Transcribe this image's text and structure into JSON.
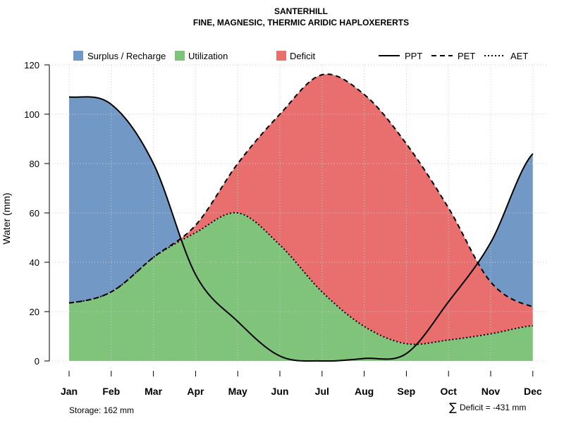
{
  "chart_data": {
    "type": "area",
    "title": "SANTERHILL",
    "subtitle": "FINE, MAGNESIC, THERMIC ARIDIC HAPLOXERERTS",
    "ylabel": "Water (mm)",
    "xlabel": "",
    "ylim": [
      0,
      120
    ],
    "yticks": [
      "0",
      "20",
      "40",
      "60",
      "80",
      "100",
      "120"
    ],
    "categories": [
      "Jan",
      "Feb",
      "Mar",
      "Apr",
      "May",
      "Jun",
      "Jul",
      "Aug",
      "Sep",
      "Oct",
      "Nov",
      "Dec"
    ],
    "series": [
      {
        "name": "PPT",
        "style": "solid",
        "values": [
          107,
          104,
          80,
          35,
          16,
          2,
          0,
          1,
          3,
          24,
          48,
          84
        ]
      },
      {
        "name": "PET",
        "style": "dashed",
        "values": [
          23.5,
          28,
          42,
          55,
          80,
          100,
          116,
          108,
          88,
          62,
          32,
          22
        ]
      },
      {
        "name": "AET",
        "style": "dotted",
        "values": [
          23.5,
          28,
          42,
          52,
          60,
          47,
          28,
          14,
          7,
          8.5,
          11,
          14.3
        ]
      }
    ],
    "legend": {
      "placement": "top",
      "fills": [
        {
          "label": "Surplus / Recharge",
          "color": "#7299C6"
        },
        {
          "label": "Utilization",
          "color": "#80C47C"
        },
        {
          "label": "Deficit",
          "color": "#E96E6E"
        }
      ],
      "lines": [
        {
          "label": "PPT",
          "style": "solid"
        },
        {
          "label": "PET",
          "style": "dashed"
        },
        {
          "label": "AET",
          "style": "dotted"
        }
      ]
    },
    "annotations": {
      "storage": "Storage: 162 mm",
      "deficit_symbol": "∑",
      "deficit": "Deficit = -431 mm"
    },
    "grid": true
  }
}
